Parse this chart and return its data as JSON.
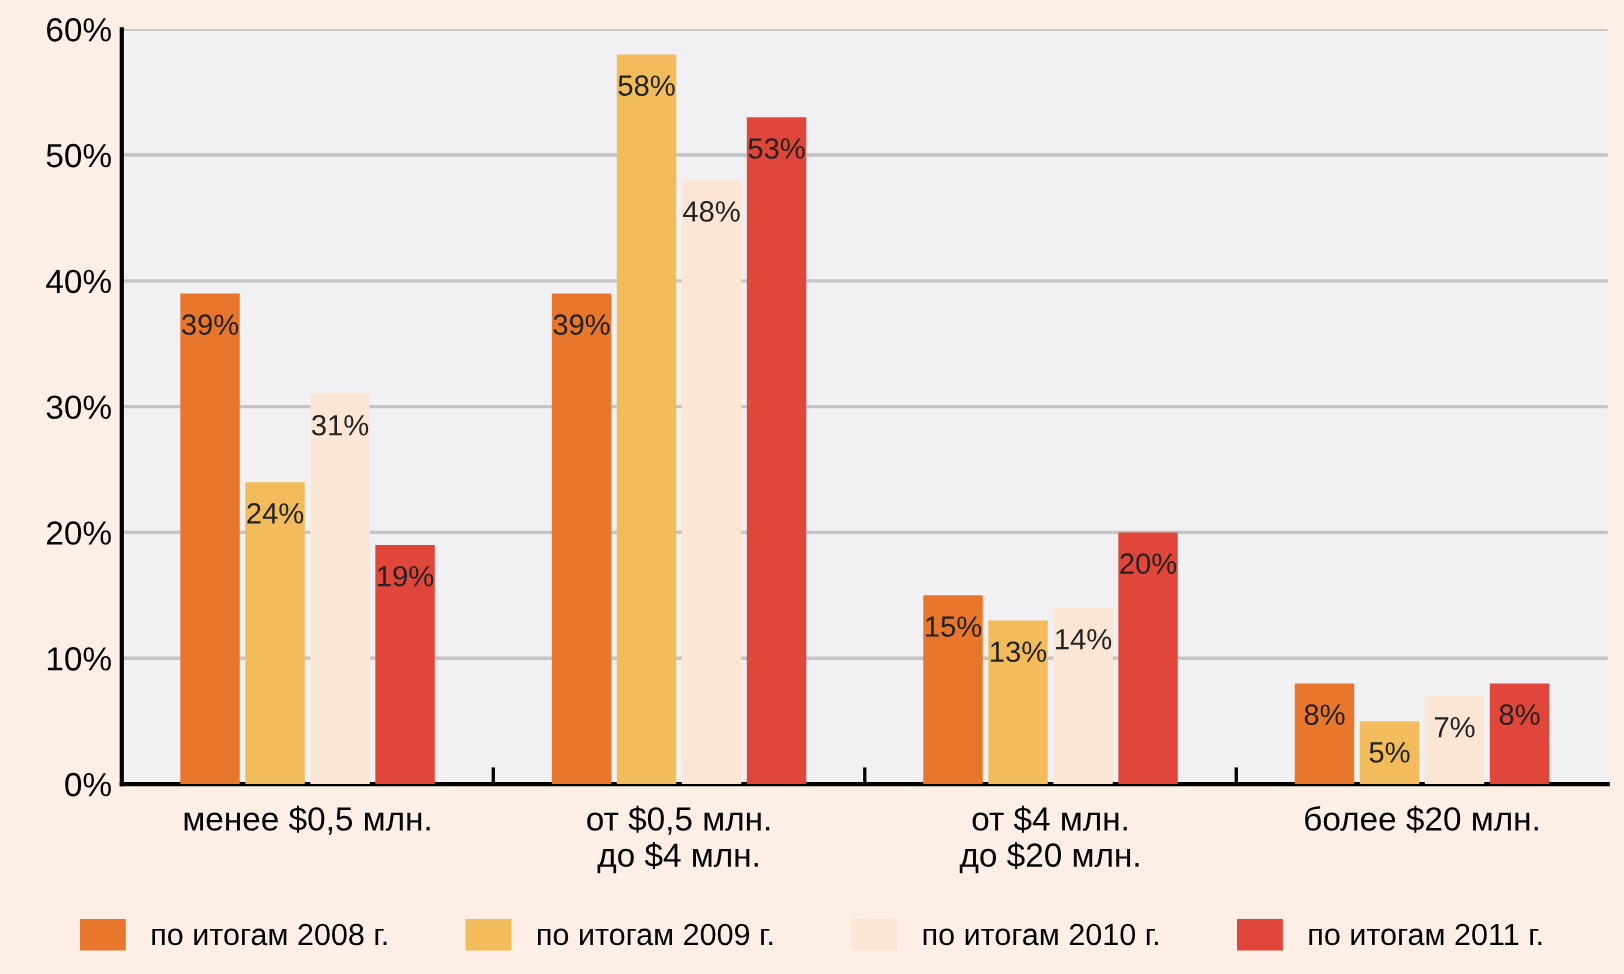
{
  "chart_data": {
    "type": "bar",
    "categories": [
      "менее $0,5 млн.",
      "от $0,5 млн.\nдо $4 млн.",
      "от $4 млн.\nдо $20 млн.",
      "более $20 млн."
    ],
    "series": [
      {
        "name": "по итогам 2008 г.",
        "color": "#e8762c",
        "values": [
          39,
          39,
          15,
          8
        ],
        "value_labels": [
          "39%",
          "39%",
          "15%",
          "8%"
        ]
      },
      {
        "name": "по итогам 2009 г.",
        "color": "#f2bc5c",
        "values": [
          24,
          58,
          13,
          5
        ],
        "value_labels": [
          "24%",
          "58%",
          "13%",
          "5%"
        ]
      },
      {
        "name": "по итогам 2010 г.",
        "color": "#fbe6d6",
        "values": [
          31,
          48,
          14,
          7
        ],
        "value_labels": [
          "31%",
          "48%",
          "14%",
          "7%"
        ]
      },
      {
        "name": "по итогам 2011 г.",
        "color": "#e0463a",
        "values": [
          19,
          53,
          20,
          8
        ],
        "value_labels": [
          "19%",
          "53%",
          "20%",
          "8%"
        ]
      }
    ],
    "ylim": [
      0,
      60
    ],
    "yticks": [
      {
        "value": 0,
        "label": "0%"
      },
      {
        "value": 10,
        "label": "10%"
      },
      {
        "value": 20,
        "label": "20%"
      },
      {
        "value": 30,
        "label": "30%"
      },
      {
        "value": 40,
        "label": "40%"
      },
      {
        "value": 50,
        "label": "50%"
      },
      {
        "value": 60,
        "label": "60%"
      }
    ],
    "grid": "y",
    "legend": "bottom"
  }
}
